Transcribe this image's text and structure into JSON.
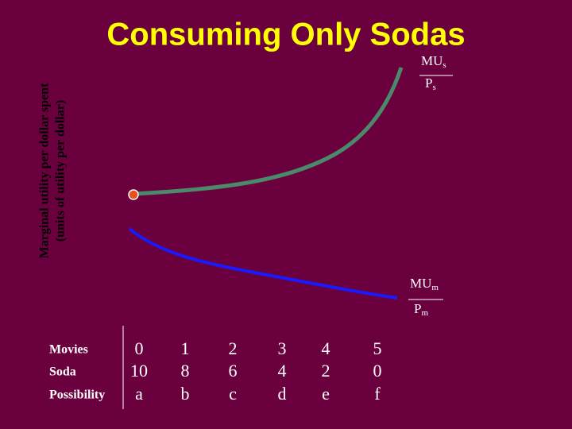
{
  "title": "Consuming Only Sodas",
  "y_axis_label": [
    "Marginal utility per dollar spent",
    "(units of utility per dollar)"
  ],
  "curve_labels": {
    "soda": {
      "numerator": "MU",
      "numerator_sub": "s",
      "denominator": "P",
      "denominator_sub": "s"
    },
    "movies": {
      "numerator": "MU",
      "numerator_sub": "m",
      "denominator": "P",
      "denominator_sub": "m"
    }
  },
  "table": {
    "rows": [
      [
        "Movies",
        "0",
        "1",
        "2",
        "3",
        "4",
        "5"
      ],
      [
        "Soda",
        "10",
        "8",
        "6",
        "4",
        "2",
        "0"
      ],
      [
        "Possibility",
        "a",
        "b",
        "c",
        "d",
        "e",
        "f"
      ]
    ]
  }
}
